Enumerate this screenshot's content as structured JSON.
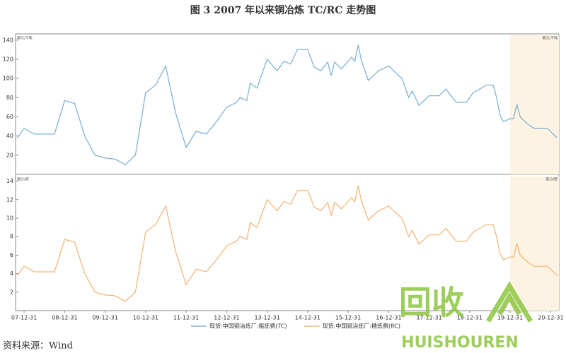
{
  "title": "图 3   2007 年以来铜冶炼 TC/RC 走势图",
  "source": "资料来源：Wind",
  "watermark": {
    "mark": "回收",
    "text": "HUISHOUREN"
  },
  "chart_data": [
    {
      "type": "line",
      "y_unit": "美元/干吨",
      "x": [
        "2007-10-31",
        "2007-12-31",
        "2008-03-31",
        "2008-09-30",
        "2008-12-31",
        "2009-03-31",
        "2009-06-30",
        "2009-09-30",
        "2009-12-31",
        "2010-03-31",
        "2010-06-30",
        "2010-09-30",
        "2010-12-31",
        "2011-03-31",
        "2011-06-30",
        "2011-09-30",
        "2011-12-31",
        "2012-03-31",
        "2012-06-30",
        "2012-09-30",
        "2012-12-31",
        "2013-03-31",
        "2013-04-30",
        "2013-06-30",
        "2013-07-31",
        "2013-09-30",
        "2013-12-31",
        "2014-03-31",
        "2014-05-31",
        "2014-07-31",
        "2014-09-30",
        "2014-12-31",
        "2015-02-28",
        "2015-04-30",
        "2015-06-30",
        "2015-07-31",
        "2015-08-31",
        "2015-10-31",
        "2016-01-31",
        "2016-02-29",
        "2016-03-31",
        "2016-04-30",
        "2016-06-30",
        "2016-09-30",
        "2016-12-31",
        "2017-03-31",
        "2017-04-30",
        "2017-06-30",
        "2017-07-31",
        "2017-09-30",
        "2017-12-31",
        "2018-03-31",
        "2018-05-31",
        "2018-08-31",
        "2018-11-30",
        "2019-01-31",
        "2019-05-31",
        "2019-07-31",
        "2019-08-31",
        "2019-09-30",
        "2019-10-31",
        "2019-12-31",
        "2020-01-31",
        "2020-02-29",
        "2020-03-31",
        "2020-05-31",
        "2020-07-31",
        "2020-11-30",
        "2021-02-28"
      ],
      "series": [
        {
          "name": "现货:中国铜冶炼厂:粗炼费(TC)",
          "color": "#7fb3d5",
          "values": [
            38,
            48,
            42,
            42,
            77,
            74,
            40,
            20,
            17,
            16,
            10,
            20,
            85,
            93,
            113,
            63,
            28,
            45,
            42,
            55,
            70,
            75,
            80,
            77,
            95,
            90,
            120,
            108,
            118,
            115,
            130,
            130,
            112,
            108,
            117,
            103,
            117,
            110,
            122,
            118,
            135,
            118,
            98,
            108,
            113,
            103,
            100,
            80,
            87,
            72,
            82,
            82,
            89,
            75,
            75,
            85,
            93,
            93,
            80,
            62,
            55,
            58,
            58,
            73,
            60,
            53,
            48,
            48,
            38
          ]
        }
      ],
      "xlim": [
        "2007-10-15",
        "2021-03-15"
      ],
      "ylim": [
        0,
        145
      ],
      "yticks": [
        20,
        40,
        60,
        80,
        100,
        120,
        140
      ],
      "shaded_range": [
        "2019-12-31",
        "2021-03-15"
      ],
      "shade_color": "#fdf3e3"
    },
    {
      "type": "line",
      "y_unit": "美分/磅",
      "x": [
        "2007-10-31",
        "2007-12-31",
        "2008-03-31",
        "2008-09-30",
        "2008-12-31",
        "2009-03-31",
        "2009-06-30",
        "2009-09-30",
        "2009-12-31",
        "2010-03-31",
        "2010-06-30",
        "2010-09-30",
        "2010-12-31",
        "2011-03-31",
        "2011-06-30",
        "2011-09-30",
        "2011-12-31",
        "2012-03-31",
        "2012-06-30",
        "2012-09-30",
        "2012-12-31",
        "2013-03-31",
        "2013-04-30",
        "2013-06-30",
        "2013-07-31",
        "2013-09-30",
        "2013-12-31",
        "2014-03-31",
        "2014-05-31",
        "2014-07-31",
        "2014-09-30",
        "2014-12-31",
        "2015-02-28",
        "2015-04-30",
        "2015-06-30",
        "2015-07-31",
        "2015-08-31",
        "2015-10-31",
        "2016-01-31",
        "2016-02-29",
        "2016-03-31",
        "2016-04-30",
        "2016-06-30",
        "2016-09-30",
        "2016-12-31",
        "2017-03-31",
        "2017-04-30",
        "2017-06-30",
        "2017-07-31",
        "2017-09-30",
        "2017-12-31",
        "2018-03-31",
        "2018-05-31",
        "2018-08-31",
        "2018-11-30",
        "2019-01-31",
        "2019-05-31",
        "2019-07-31",
        "2019-08-31",
        "2019-09-30",
        "2019-10-31",
        "2019-12-31",
        "2020-01-31",
        "2020-02-29",
        "2020-03-31",
        "2020-05-31",
        "2020-07-31",
        "2020-11-30",
        "2021-02-28"
      ],
      "series": [
        {
          "name": "现货:中国铜冶炼厂:精炼费(RC)",
          "color": "#f5b77a",
          "values": [
            3.8,
            4.8,
            4.2,
            4.2,
            7.7,
            7.4,
            4,
            2,
            1.7,
            1.6,
            1,
            2,
            8.5,
            9.3,
            11.3,
            6.3,
            2.8,
            4.5,
            4.2,
            5.5,
            7,
            7.5,
            8,
            7.7,
            9.5,
            9,
            12,
            10.8,
            11.8,
            11.5,
            13,
            13,
            11.2,
            10.8,
            11.7,
            10.3,
            11.7,
            11,
            12.2,
            11.8,
            13.5,
            11.8,
            9.8,
            10.8,
            11.3,
            10.3,
            10,
            8,
            8.7,
            7.2,
            8.2,
            8.2,
            8.9,
            7.5,
            7.5,
            8.5,
            9.3,
            9.3,
            8,
            6.2,
            5.5,
            5.8,
            5.8,
            7.3,
            6,
            5.3,
            4.8,
            4.8,
            3.8
          ]
        }
      ],
      "xlim": [
        "2007-10-15",
        "2021-03-15"
      ],
      "ylim": [
        0,
        14.5
      ],
      "yticks": [
        2,
        4,
        6,
        8,
        10,
        12,
        14
      ],
      "xticks": [
        {
          "value": "2007-12-31",
          "label": "07-12-31"
        },
        {
          "value": "2008-12-31",
          "label": "08-12-31"
        },
        {
          "value": "2009-12-31",
          "label": "09-12-31"
        },
        {
          "value": "2010-12-31",
          "label": "10-12-31"
        },
        {
          "value": "2011-12-31",
          "label": "11-12-31"
        },
        {
          "value": "2012-12-31",
          "label": "12-12-31"
        },
        {
          "value": "2013-12-31",
          "label": "13-12-31"
        },
        {
          "value": "2014-12-31",
          "label": "14-12-31"
        },
        {
          "value": "2015-12-31",
          "label": "15-12-31"
        },
        {
          "value": "2016-12-31",
          "label": "16-12-31"
        },
        {
          "value": "2017-12-31",
          "label": "17-12-31"
        },
        {
          "value": "2018-12-31",
          "label": "18-12-31"
        },
        {
          "value": "2019-12-31",
          "label": "19-12-31"
        },
        {
          "value": "2020-12-31",
          "label": "20-12-31"
        }
      ],
      "shaded_range": [
        "2019-12-31",
        "2021-03-15"
      ],
      "shade_color": "#fdf3e3"
    }
  ]
}
